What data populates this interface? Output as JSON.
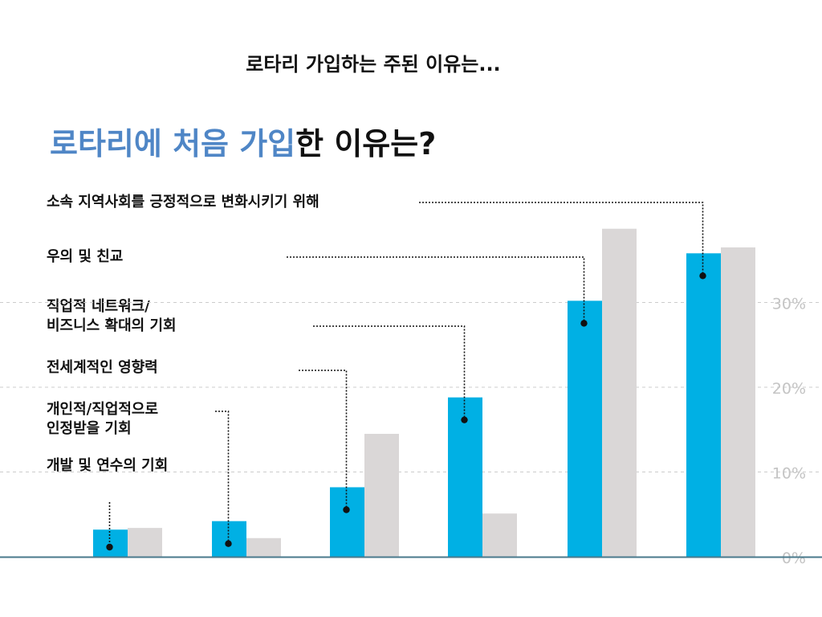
{
  "slide_title": "로타리 가입하는 주된 이유는...",
  "heading": {
    "accent_text": "로타리에 처음 가입",
    "rest_text": "한 이유는?"
  },
  "colors": {
    "primary_bar": "#00b0e4",
    "secondary_bar": "#dad7d7",
    "accent": "#4f86c6",
    "highlight_label": "#8b2772",
    "gridline": "#cccccc",
    "baseline": "#4a7a8c",
    "leader": "#111111"
  },
  "chart_data": {
    "type": "bar",
    "title": "로타리에 처음 가입한 이유는?",
    "xlabel": "",
    "ylabel": "",
    "ylim": [
      0,
      38
    ],
    "yticks": [
      "0%",
      "10%",
      "20%",
      "30%"
    ],
    "ytick_values": [
      0,
      10,
      20,
      30
    ],
    "grid": true,
    "categories": [
      {
        "lines": [
          "개발 및 연수의 기회"
        ],
        "highlight": false
      },
      {
        "lines": [
          "개인적/직업적으로",
          "인정받을 기회"
        ],
        "highlight": false
      },
      {
        "lines": [
          "전세계적인 영향력"
        ],
        "highlight": false
      },
      {
        "lines": [
          "직업적 네트워크/",
          "비즈니스 확대의 기회"
        ],
        "highlight": false
      },
      {
        "lines": [
          "우의 및 친교"
        ],
        "highlight": true
      },
      {
        "lines": [
          "소속 지역사회를 긍정적으로 변화시키기 위해"
        ],
        "highlight": true
      }
    ],
    "series": [
      {
        "name": "primary",
        "values": [
          3.2,
          4.2,
          8.2,
          18.8,
          30.2,
          35.8
        ]
      },
      {
        "name": "secondary",
        "values": [
          3.4,
          2.2,
          14.5,
          5.1,
          38.7,
          36.5
        ]
      }
    ]
  }
}
